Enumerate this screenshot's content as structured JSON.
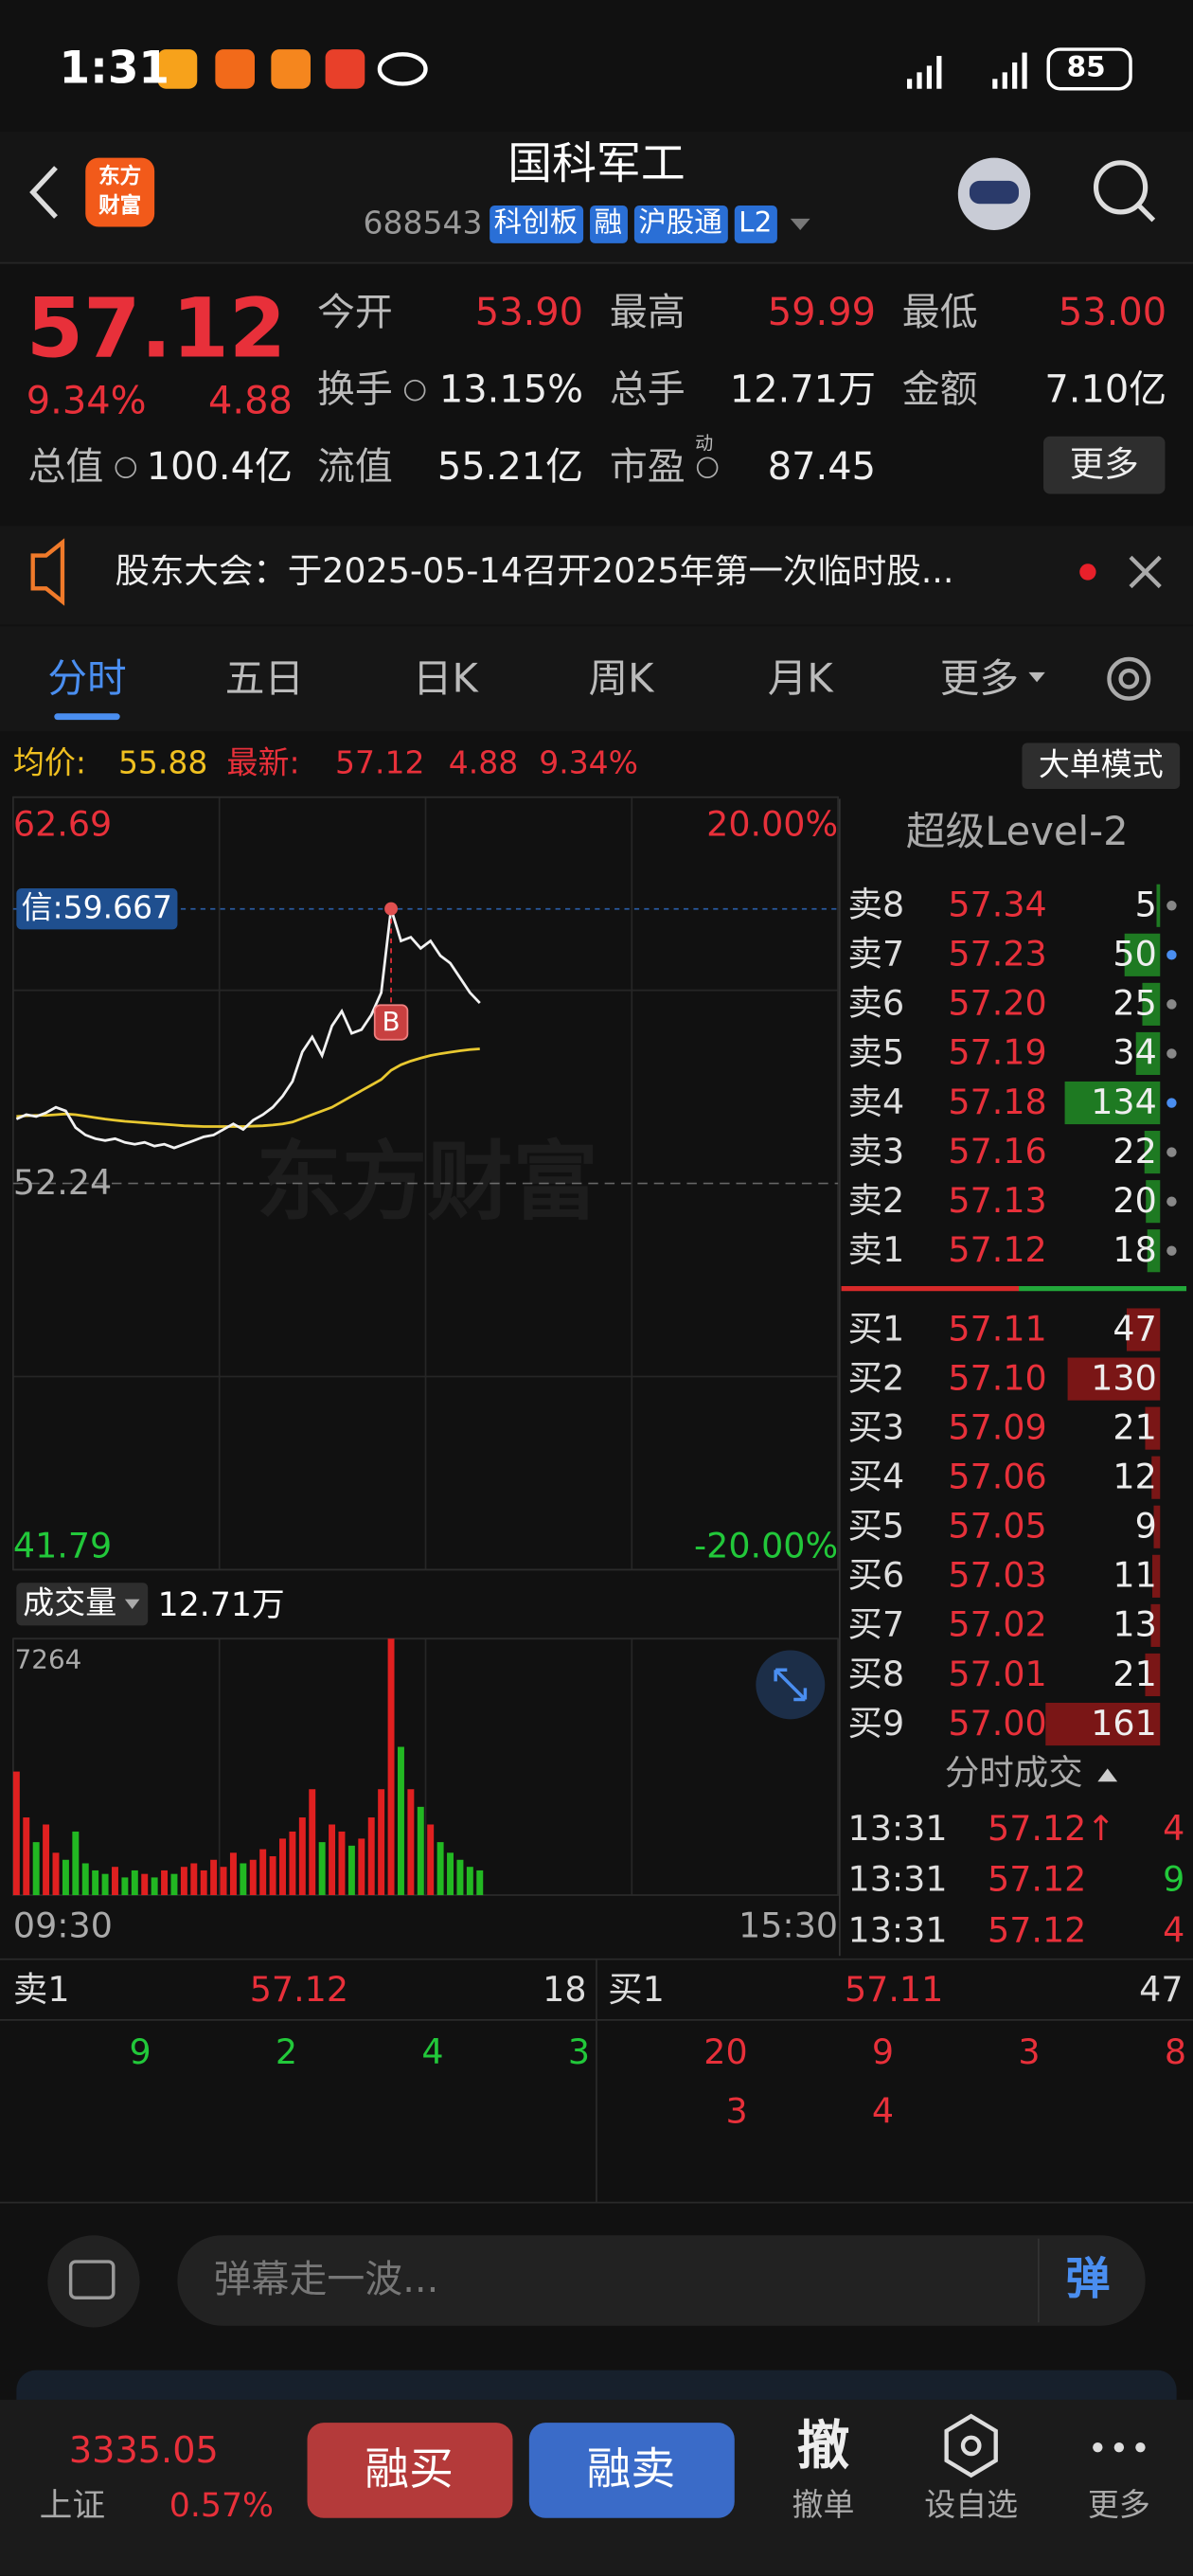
{
  "status_bar": {
    "time": "1:31",
    "battery": "85"
  },
  "header": {
    "logo": [
      "东方",
      "财富"
    ],
    "title": "国科军工",
    "code": "688543",
    "tags": [
      "科创板",
      "融",
      "沪股通",
      "L2"
    ]
  },
  "quote": {
    "price": "57.12",
    "change_pct": "9.34%",
    "change": "4.88",
    "stats": [
      {
        "label": "今开",
        "value": "53.90"
      },
      {
        "label": "最高",
        "value": "59.99"
      },
      {
        "label": "最低",
        "value": "53.00"
      },
      {
        "label": "换手",
        "value": "13.15%"
      },
      {
        "label": "总手",
        "value": "12.71万"
      },
      {
        "label": "金额",
        "value": "7.10亿"
      },
      {
        "label": "总值",
        "value": "100.4亿"
      },
      {
        "label": "流值",
        "value": "55.21亿"
      },
      {
        "label": "市盈",
        "value": "87.45",
        "superscript": "动"
      }
    ],
    "more": "更多"
  },
  "notice": "股东大会：于2025-05-14召开2025年第一次临时股...",
  "tabs": [
    "分时",
    "五日",
    "日K",
    "周K",
    "月K",
    "更多"
  ],
  "info_bar": {
    "avg_label": "均价:",
    "avg": "55.88",
    "last_label": "最新:",
    "last": "57.12",
    "change": "4.88",
    "change_pct": "9.34%",
    "mode_button": "大单模式"
  },
  "intraday": {
    "watermark": "东方财富",
    "ylim": [
      41.79,
      62.69
    ],
    "yticks": [
      62.69,
      52.24,
      41.79
    ],
    "pct_labels": [
      "20.00%",
      "-20.00%"
    ],
    "signal": {
      "value": 59.667,
      "label": "信:59.667"
    },
    "buy_marker": "B",
    "price": [
      53.98,
      54.1,
      54.05,
      54.15,
      54.3,
      54.2,
      53.75,
      53.55,
      53.45,
      53.4,
      53.45,
      53.35,
      53.3,
      53.35,
      53.25,
      53.3,
      53.2,
      53.3,
      53.4,
      53.5,
      53.55,
      53.7,
      53.85,
      53.7,
      53.95,
      54.1,
      54.3,
      54.6,
      55.0,
      55.8,
      56.2,
      55.7,
      56.5,
      56.9,
      56.3,
      56.4,
      56.8,
      57.4,
      59.67,
      58.8,
      58.9,
      58.6,
      58.8,
      58.4,
      58.2,
      57.8,
      57.4,
      57.12
    ],
    "avg": [
      54.05,
      54.07,
      54.08,
      54.08,
      54.1,
      54.12,
      54.1,
      54.06,
      54.02,
      53.98,
      53.95,
      53.92,
      53.9,
      53.88,
      53.86,
      53.84,
      53.82,
      53.8,
      53.79,
      53.78,
      53.78,
      53.78,
      53.78,
      53.78,
      53.79,
      53.8,
      53.82,
      53.85,
      53.9,
      54.0,
      54.1,
      54.2,
      54.3,
      54.45,
      54.6,
      54.75,
      54.9,
      55.05,
      55.3,
      55.45,
      55.55,
      55.63,
      55.7,
      55.75,
      55.79,
      55.83,
      55.86,
      55.88
    ],
    "volume_label": "成交量",
    "volume_total": "12.71万",
    "volume_ylim": [
      0,
      7264
    ],
    "volume_yticks": [
      7264
    ],
    "volume": [
      3500,
      2200,
      1500,
      2000,
      1200,
      1000,
      1800,
      900,
      700,
      600,
      800,
      500,
      700,
      600,
      500,
      700,
      600,
      800,
      900,
      700,
      1000,
      800,
      1200,
      900,
      1000,
      1300,
      1100,
      1600,
      1800,
      2200,
      3000,
      1500,
      2000,
      1800,
      1400,
      1600,
      2200,
      3000,
      7264,
      4200,
      3000,
      2500,
      2000,
      1500,
      1200,
      1000,
      800,
      700
    ],
    "times": [
      "09:30",
      "15:30"
    ]
  },
  "order_book": {
    "title": "超级Level-2",
    "sells": [
      {
        "label": "卖8",
        "price": "57.34",
        "qty": 5
      },
      {
        "label": "卖7",
        "price": "57.23",
        "qty": 50
      },
      {
        "label": "卖6",
        "price": "57.20",
        "qty": 25
      },
      {
        "label": "卖5",
        "price": "57.19",
        "qty": 34
      },
      {
        "label": "卖4",
        "price": "57.18",
        "qty": 134
      },
      {
        "label": "卖3",
        "price": "57.16",
        "qty": 22
      },
      {
        "label": "卖2",
        "price": "57.13",
        "qty": 20
      },
      {
        "label": "卖1",
        "price": "57.12",
        "qty": 18
      }
    ],
    "buys": [
      {
        "label": "买1",
        "price": "57.11",
        "qty": 47
      },
      {
        "label": "买2",
        "price": "57.10",
        "qty": 130
      },
      {
        "label": "买3",
        "price": "57.09",
        "qty": 21
      },
      {
        "label": "买4",
        "price": "57.06",
        "qty": 12
      },
      {
        "label": "买5",
        "price": "57.05",
        "qty": 9
      },
      {
        "label": "买6",
        "price": "57.03",
        "qty": 11
      },
      {
        "label": "买7",
        "price": "57.02",
        "qty": 13
      },
      {
        "label": "买8",
        "price": "57.01",
        "qty": 21
      },
      {
        "label": "买9",
        "price": "57.00",
        "qty": 161
      }
    ]
  },
  "trades": {
    "title": "分时成交",
    "rows": [
      {
        "time": "13:31",
        "price": "57.12↑",
        "qty": 4,
        "color": "#e8303a"
      },
      {
        "time": "13:31",
        "price": "57.12",
        "qty": 9,
        "color": "#22c83a"
      },
      {
        "time": "13:31",
        "price": "57.12",
        "qty": 4,
        "color": "#e8303a"
      }
    ]
  },
  "queue": {
    "sell": {
      "label": "卖1",
      "price": "57.12",
      "qty": 18,
      "orders": [
        9,
        2,
        4,
        3
      ]
    },
    "buy": {
      "label": "买1",
      "price": "57.11",
      "qty": 47,
      "orders": [
        20,
        9,
        3,
        8,
        3,
        4
      ]
    }
  },
  "comment": {
    "placeholder": "弹幕走一波...",
    "button": "弹"
  },
  "bottom_bar": {
    "index_value": "3335.05",
    "index_name": "上证",
    "index_change": "0.57%",
    "buttons": [
      "融买",
      "融卖"
    ],
    "cancel_icon": "撤",
    "cancel": "撤单",
    "watchlist": "设自选",
    "more": "更多"
  }
}
